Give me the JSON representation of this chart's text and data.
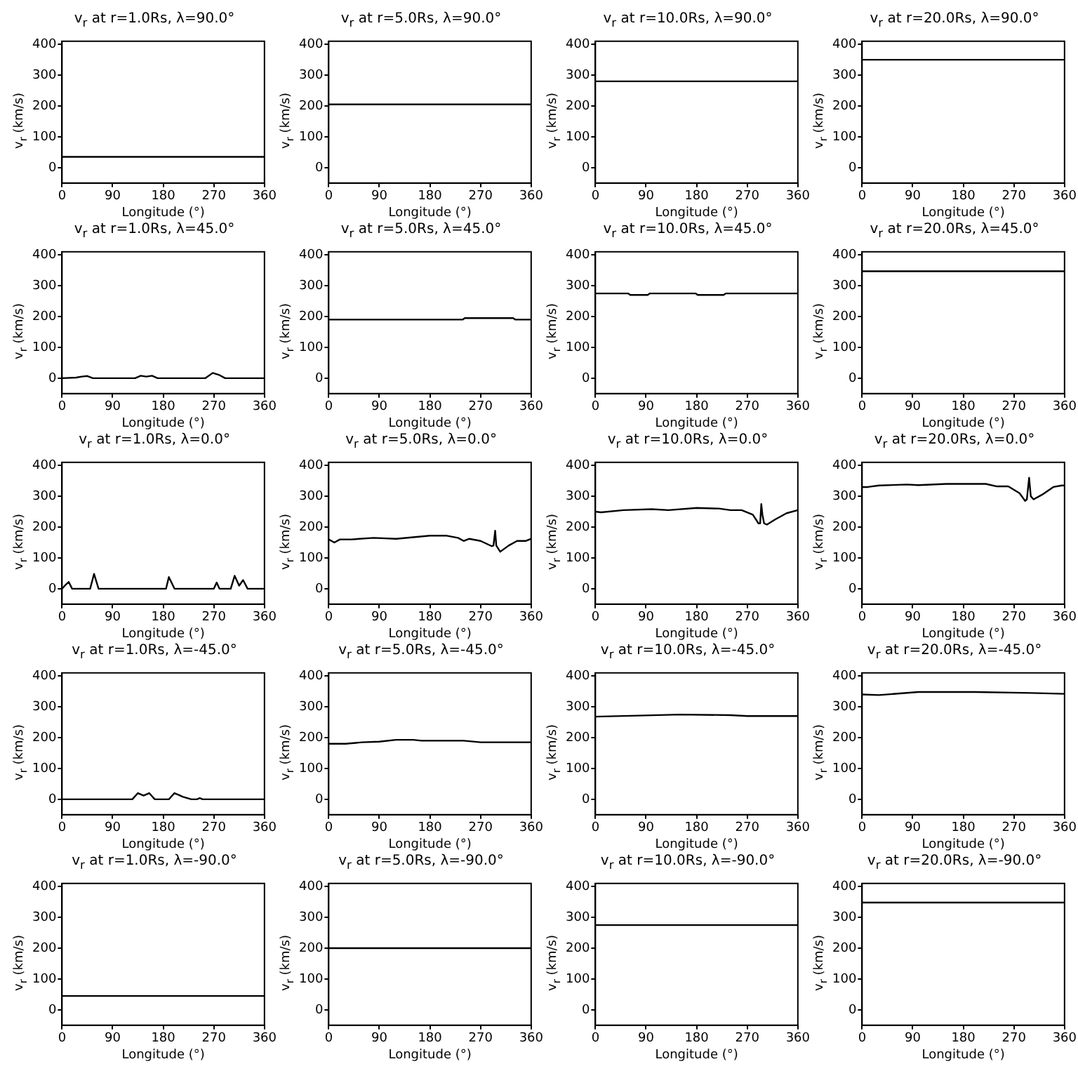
{
  "chart_data": [
    {
      "type": "line",
      "title": "v$_{r}$ at r=1.0Rs, λ=90.0°",
      "xlabel": "Longitude (°)",
      "ylabel": "v$_{r}$ (km/s)",
      "color": "#000000",
      "x": [
        0,
        360
      ],
      "values": [
        35,
        35
      ],
      "xlim": [
        0,
        360
      ],
      "ylim": [
        -50,
        410
      ],
      "xticks": [
        0,
        90,
        180,
        270,
        360
      ],
      "yticks": [
        0,
        100,
        200,
        300,
        400
      ]
    },
    {
      "type": "line",
      "title": "v$_{r}$ at r=5.0Rs, λ=90.0°",
      "xlabel": "Longitude (°)",
      "ylabel": "v$_{r}$ (km/s)",
      "color": "#000000",
      "x": [
        0,
        360
      ],
      "values": [
        205,
        205
      ],
      "xlim": [
        0,
        360
      ],
      "ylim": [
        -50,
        410
      ],
      "xticks": [
        0,
        90,
        180,
        270,
        360
      ],
      "yticks": [
        0,
        100,
        200,
        300,
        400
      ]
    },
    {
      "type": "line",
      "title": "v$_{r}$ at r=10.0Rs, λ=90.0°",
      "xlabel": "Longitude (°)",
      "ylabel": "v$_{r}$ (km/s)",
      "color": "#000000",
      "x": [
        0,
        360
      ],
      "values": [
        280,
        280
      ],
      "xlim": [
        0,
        360
      ],
      "ylim": [
        -50,
        410
      ],
      "xticks": [
        0,
        90,
        180,
        270,
        360
      ],
      "yticks": [
        0,
        100,
        200,
        300,
        400
      ]
    },
    {
      "type": "line",
      "title": "v$_{r}$ at r=20.0Rs, λ=90.0°",
      "xlabel": "Longitude (°)",
      "ylabel": "v$_{r}$ (km/s)",
      "color": "#000000",
      "x": [
        0,
        360
      ],
      "values": [
        350,
        350
      ],
      "xlim": [
        0,
        360
      ],
      "ylim": [
        -50,
        410
      ],
      "xticks": [
        0,
        90,
        180,
        270,
        360
      ],
      "yticks": [
        0,
        100,
        200,
        300,
        400
      ]
    },
    {
      "type": "line",
      "title": "v$_{r}$ at r=1.0Rs, λ=45.0°",
      "xlabel": "Longitude (°)",
      "ylabel": "v$_{r}$ (km/s)",
      "color": "#000000",
      "x": [
        0,
        25,
        35,
        45,
        55,
        130,
        140,
        150,
        160,
        170,
        255,
        268,
        280,
        290,
        360
      ],
      "values": [
        0,
        2,
        5,
        7,
        0,
        0,
        8,
        5,
        8,
        0,
        0,
        17,
        10,
        0,
        0
      ],
      "xlim": [
        0,
        360
      ],
      "ylim": [
        -50,
        410
      ],
      "xticks": [
        0,
        90,
        180,
        270,
        360
      ],
      "yticks": [
        0,
        100,
        200,
        300,
        400
      ]
    },
    {
      "type": "line",
      "title": "v$_{r}$ at r=5.0Rs, λ=45.0°",
      "xlabel": "Longitude (°)",
      "ylabel": "v$_{r}$ (km/s)",
      "color": "#000000",
      "x": [
        0,
        238,
        242,
        328,
        332,
        360
      ],
      "values": [
        190,
        190,
        195,
        195,
        190,
        190
      ],
      "xlim": [
        0,
        360
      ],
      "ylim": [
        -50,
        410
      ],
      "xticks": [
        0,
        90,
        180,
        270,
        360
      ],
      "yticks": [
        0,
        100,
        200,
        300,
        400
      ]
    },
    {
      "type": "line",
      "title": "v$_{r}$ at r=10.0Rs, λ=45.0°",
      "xlabel": "Longitude (°)",
      "ylabel": "v$_{r}$ (km/s)",
      "color": "#000000",
      "x": [
        0,
        58,
        62,
        93,
        97,
        178,
        182,
        228,
        232,
        360
      ],
      "values": [
        275,
        275,
        270,
        270,
        275,
        275,
        270,
        270,
        275,
        275
      ],
      "xlim": [
        0,
        360
      ],
      "ylim": [
        -50,
        410
      ],
      "xticks": [
        0,
        90,
        180,
        270,
        360
      ],
      "yticks": [
        0,
        100,
        200,
        300,
        400
      ]
    },
    {
      "type": "line",
      "title": "v$_{r}$ at r=20.0Rs, λ=45.0°",
      "xlabel": "Longitude (°)",
      "ylabel": "v$_{r}$ (km/s)",
      "color": "#000000",
      "x": [
        0,
        360
      ],
      "values": [
        347,
        347
      ],
      "xlim": [
        0,
        360
      ],
      "ylim": [
        -50,
        410
      ],
      "xticks": [
        0,
        90,
        180,
        270,
        360
      ],
      "yticks": [
        0,
        100,
        200,
        300,
        400
      ]
    },
    {
      "type": "line",
      "title": "v$_{r}$ at r=1.0Rs, λ=0.0°",
      "xlabel": "Longitude (°)",
      "ylabel": "v$_{r}$ (km/s)",
      "color": "#000000",
      "x": [
        0,
        5,
        12,
        18,
        50,
        57,
        65,
        185,
        190,
        200,
        270,
        275,
        280,
        300,
        307,
        315,
        322,
        330,
        360
      ],
      "values": [
        0,
        10,
        22,
        0,
        0,
        48,
        0,
        0,
        38,
        0,
        0,
        20,
        0,
        0,
        42,
        10,
        28,
        0,
        0
      ],
      "xlim": [
        0,
        360
      ],
      "ylim": [
        -50,
        410
      ],
      "xticks": [
        0,
        90,
        180,
        270,
        360
      ],
      "yticks": [
        0,
        100,
        200,
        300,
        400
      ]
    },
    {
      "type": "line",
      "title": "v$_{r}$ at r=5.0Rs, λ=0.0°",
      "xlabel": "Longitude (°)",
      "ylabel": "v$_{r}$ (km/s)",
      "color": "#000000",
      "x": [
        0,
        10,
        20,
        40,
        80,
        120,
        180,
        210,
        230,
        240,
        250,
        270,
        290,
        293,
        296,
        298,
        305,
        320,
        335,
        350,
        360
      ],
      "values": [
        160,
        150,
        160,
        160,
        165,
        162,
        172,
        172,
        165,
        155,
        162,
        155,
        138,
        140,
        188,
        140,
        120,
        140,
        155,
        155,
        162
      ],
      "xlim": [
        0,
        360
      ],
      "ylim": [
        -50,
        410
      ],
      "xticks": [
        0,
        90,
        180,
        270,
        360
      ],
      "yticks": [
        0,
        100,
        200,
        300,
        400
      ]
    },
    {
      "type": "line",
      "title": "v$_{r}$ at r=10.0Rs, λ=0.0°",
      "xlabel": "Longitude (°)",
      "ylabel": "v$_{r}$ (km/s)",
      "color": "#000000",
      "x": [
        0,
        10,
        50,
        100,
        130,
        180,
        220,
        240,
        260,
        280,
        290,
        293,
        295,
        297,
        300,
        305,
        320,
        340,
        360
      ],
      "values": [
        250,
        248,
        255,
        258,
        255,
        262,
        260,
        255,
        255,
        240,
        212,
        212,
        275,
        240,
        212,
        208,
        225,
        245,
        255
      ],
      "xlim": [
        0,
        360
      ],
      "ylim": [
        -50,
        410
      ],
      "xticks": [
        0,
        90,
        180,
        270,
        360
      ],
      "yticks": [
        0,
        100,
        200,
        300,
        400
      ]
    },
    {
      "type": "line",
      "title": "v$_{r}$ at r=20.0Rs, λ=0.0°",
      "xlabel": "Longitude (°)",
      "ylabel": "v$_{r}$ (km/s)",
      "color": "#000000",
      "x": [
        0,
        10,
        30,
        80,
        100,
        150,
        220,
        240,
        260,
        280,
        290,
        293,
        297,
        300,
        305,
        320,
        340,
        355,
        360
      ],
      "values": [
        330,
        330,
        335,
        338,
        336,
        340,
        340,
        332,
        332,
        310,
        285,
        290,
        360,
        300,
        290,
        305,
        330,
        335,
        335
      ],
      "xlim": [
        0,
        360
      ],
      "ylim": [
        -50,
        410
      ],
      "xticks": [
        0,
        90,
        180,
        270,
        360
      ],
      "yticks": [
        0,
        100,
        200,
        300,
        400
      ]
    },
    {
      "type": "line",
      "title": "v$_{r}$ at r=1.0Rs, λ=-45.0°",
      "xlabel": "Longitude (°)",
      "ylabel": "v$_{r}$ (km/s)",
      "color": "#000000",
      "x": [
        0,
        125,
        135,
        145,
        155,
        165,
        190,
        200,
        215,
        230,
        240,
        245,
        250,
        360
      ],
      "values": [
        0,
        0,
        20,
        12,
        20,
        0,
        0,
        20,
        8,
        0,
        0,
        4,
        0,
        0
      ],
      "xlim": [
        0,
        360
      ],
      "ylim": [
        -50,
        410
      ],
      "xticks": [
        0,
        90,
        180,
        270,
        360
      ],
      "yticks": [
        0,
        100,
        200,
        300,
        400
      ]
    },
    {
      "type": "line",
      "title": "v$_{r}$ at r=5.0Rs, λ=-45.0°",
      "xlabel": "Longitude (°)",
      "ylabel": "v$_{r}$ (km/s)",
      "color": "#000000",
      "x": [
        0,
        30,
        60,
        90,
        120,
        150,
        165,
        240,
        270,
        360
      ],
      "values": [
        180,
        180,
        185,
        187,
        193,
        193,
        190,
        190,
        185,
        185
      ],
      "xlim": [
        0,
        360
      ],
      "ylim": [
        -50,
        410
      ],
      "xticks": [
        0,
        90,
        180,
        270,
        360
      ],
      "yticks": [
        0,
        100,
        200,
        300,
        400
      ]
    },
    {
      "type": "line",
      "title": "v$_{r}$ at r=10.0Rs, λ=-45.0°",
      "xlabel": "Longitude (°)",
      "ylabel": "v$_{r}$ (km/s)",
      "color": "#000000",
      "x": [
        0,
        90,
        150,
        240,
        270,
        360
      ],
      "values": [
        268,
        272,
        275,
        273,
        270,
        270
      ],
      "xlim": [
        0,
        360
      ],
      "ylim": [
        -50,
        410
      ],
      "xticks": [
        0,
        90,
        180,
        270,
        360
      ],
      "yticks": [
        0,
        100,
        200,
        300,
        400
      ]
    },
    {
      "type": "line",
      "title": "v$_{r}$ at r=20.0Rs, λ=-45.0°",
      "xlabel": "Longitude (°)",
      "ylabel": "v$_{r}$ (km/s)",
      "color": "#000000",
      "x": [
        0,
        30,
        100,
        200,
        300,
        360
      ],
      "values": [
        340,
        338,
        348,
        348,
        345,
        342
      ],
      "xlim": [
        0,
        360
      ],
      "ylim": [
        -50,
        410
      ],
      "xticks": [
        0,
        90,
        180,
        270,
        360
      ],
      "yticks": [
        0,
        100,
        200,
        300,
        400
      ]
    },
    {
      "type": "line",
      "title": "v$_{r}$ at r=1.0Rs, λ=-90.0°",
      "xlabel": "Longitude (°)",
      "ylabel": "v$_{r}$ (km/s)",
      "color": "#000000",
      "x": [
        0,
        360
      ],
      "values": [
        45,
        45
      ],
      "xlim": [
        0,
        360
      ],
      "ylim": [
        -50,
        410
      ],
      "xticks": [
        0,
        90,
        180,
        270,
        360
      ],
      "yticks": [
        0,
        100,
        200,
        300,
        400
      ]
    },
    {
      "type": "line",
      "title": "v$_{r}$ at r=5.0Rs, λ=-90.0°",
      "xlabel": "Longitude (°)",
      "ylabel": "v$_{r}$ (km/s)",
      "color": "#000000",
      "x": [
        0,
        360
      ],
      "values": [
        200,
        200
      ],
      "xlim": [
        0,
        360
      ],
      "ylim": [
        -50,
        410
      ],
      "xticks": [
        0,
        90,
        180,
        270,
        360
      ],
      "yticks": [
        0,
        100,
        200,
        300,
        400
      ]
    },
    {
      "type": "line",
      "title": "v$_{r}$ at r=10.0Rs, λ=-90.0°",
      "xlabel": "Longitude (°)",
      "ylabel": "v$_{r}$ (km/s)",
      "color": "#000000",
      "x": [
        0,
        360
      ],
      "values": [
        275,
        275
      ],
      "xlim": [
        0,
        360
      ],
      "ylim": [
        -50,
        410
      ],
      "xticks": [
        0,
        90,
        180,
        270,
        360
      ],
      "yticks": [
        0,
        100,
        200,
        300,
        400
      ]
    },
    {
      "type": "line",
      "title": "v$_{r}$ at r=20.0Rs, λ=-90.0°",
      "xlabel": "Longitude (°)",
      "ylabel": "v$_{r}$ (km/s)",
      "color": "#000000",
      "x": [
        0,
        360
      ],
      "values": [
        348,
        348
      ],
      "xlim": [
        0,
        360
      ],
      "ylim": [
        -50,
        410
      ],
      "xticks": [
        0,
        90,
        180,
        270,
        360
      ],
      "yticks": [
        0,
        100,
        200,
        300,
        400
      ]
    }
  ]
}
